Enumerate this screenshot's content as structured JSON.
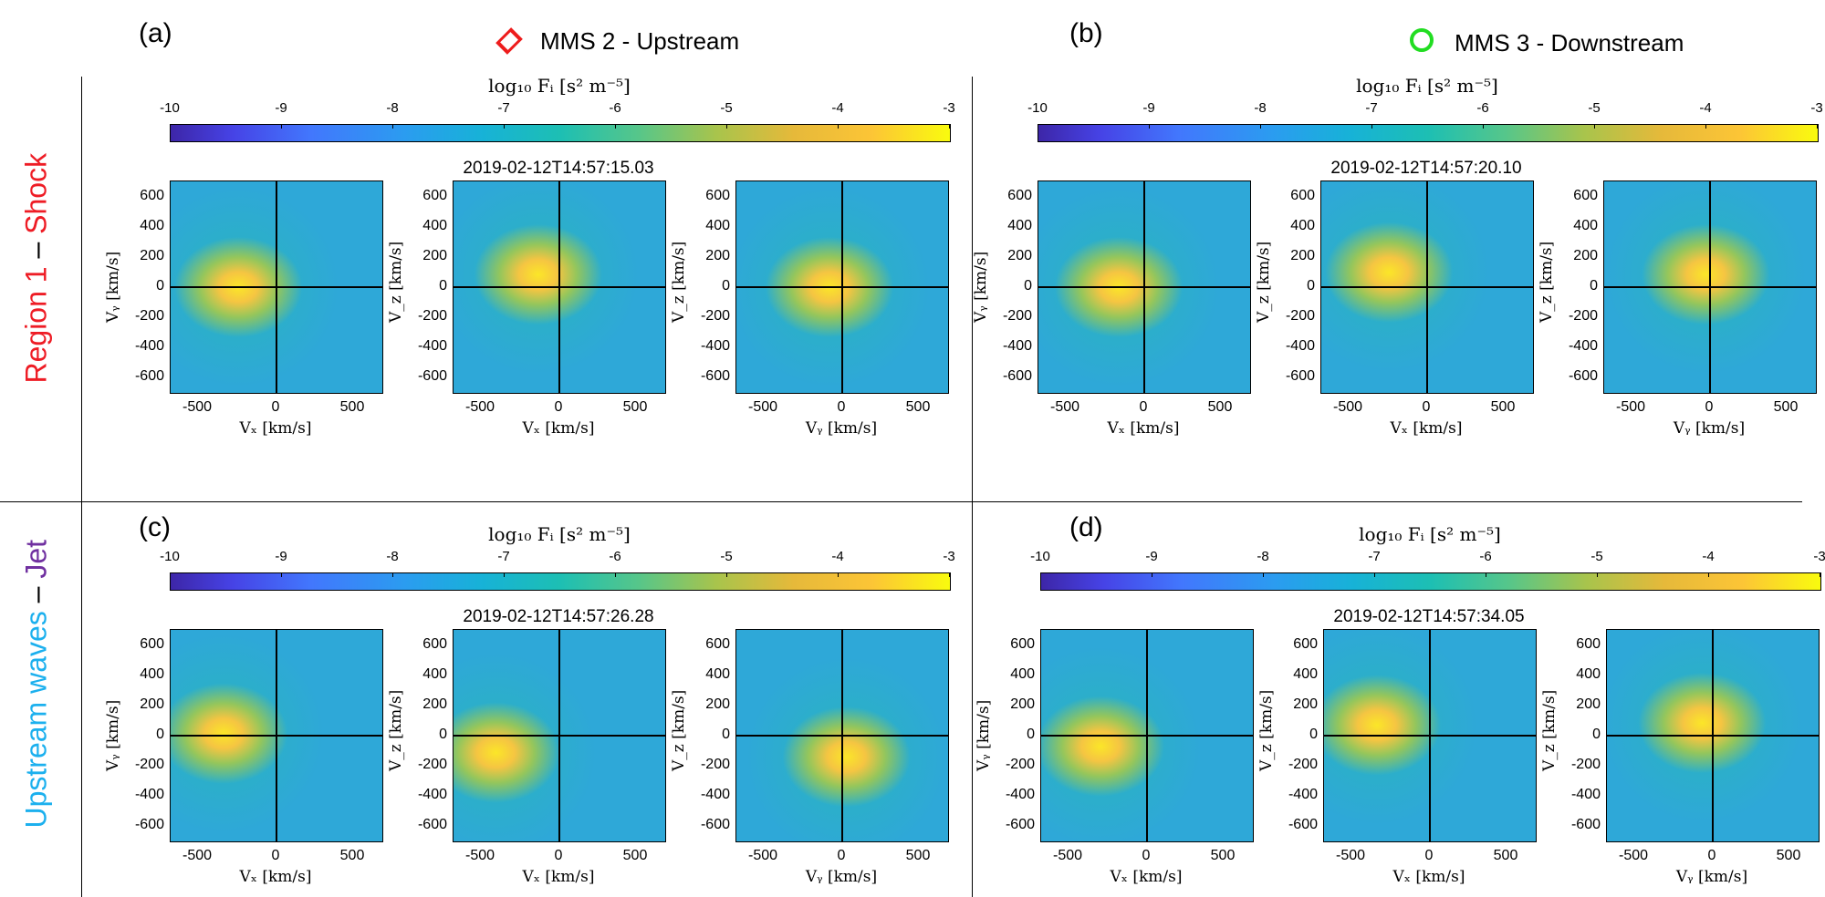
{
  "legend": {
    "upstream": "MMS 2 - Upstream",
    "downstream": "MMS 3 - Downstream",
    "upstream_color": "#ee1c1c",
    "downstream_color": "#22dd22"
  },
  "rows": {
    "region1": {
      "part1": "Region 1",
      "dash": " – ",
      "part2": "Shock",
      "color1": "#ee1c25",
      "color2": "#ee1c25"
    },
    "region2": {
      "part1": "Upstream waves",
      "dash": " – ",
      "part2": "Jet",
      "color1": "#1cb0ee",
      "color2": "#7030a0"
    }
  },
  "colorbar": {
    "title": "log₁₀ Fᵢ [s² m⁻⁵]",
    "ticks": [
      "-10",
      "-9",
      "-8",
      "-7",
      "-6",
      "-5",
      "-4",
      "-3"
    ]
  },
  "axes": {
    "xticks": [
      "-500",
      "0",
      "500"
    ],
    "yticks": [
      "600",
      "400",
      "200",
      "0",
      "-200",
      "-400",
      "-600"
    ],
    "vx": "Vₓ [km/s]",
    "vy": "Vᵧ [km/s]",
    "vz": "V_z [km/s]"
  },
  "panels": {
    "a": {
      "label": "(a)",
      "timestamp": "2019-02-12T14:57:15.03"
    },
    "b": {
      "label": "(b)",
      "timestamp": "2019-02-12T14:57:20.10"
    },
    "c": {
      "label": "(c)",
      "timestamp": "2019-02-12T14:57:26.28"
    },
    "d": {
      "label": "(d)",
      "timestamp": "2019-02-12T14:57:34.05"
    }
  }
}
